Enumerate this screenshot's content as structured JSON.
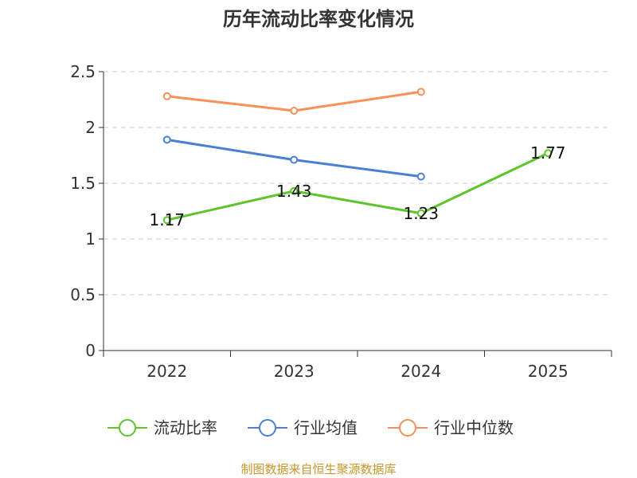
{
  "chart_data": {
    "type": "line",
    "title": "历年流动比率变化情况",
    "categories": [
      "2022",
      "2023",
      "2024",
      "2025"
    ],
    "ylim": [
      0,
      2.5
    ],
    "yticks": [
      "0",
      "0.5",
      "1",
      "1.5",
      "2",
      "2.5"
    ],
    "ytick_values": [
      0,
      0.5,
      1,
      1.5,
      2,
      2.5
    ],
    "grid": true,
    "legend_position": "bottom",
    "series": [
      {
        "name": "流动比率",
        "color": "#5cc52b",
        "values": [
          1.17,
          1.43,
          1.23,
          1.77
        ],
        "labels": [
          "1.17",
          "1.43",
          "1.23",
          "1.77"
        ]
      },
      {
        "name": "行业均值",
        "color": "#4a7fd8",
        "values": [
          1.89,
          1.71,
          1.56,
          null
        ]
      },
      {
        "name": "行业中位数",
        "color": "#f79158",
        "values": [
          2.28,
          2.15,
          2.32,
          null
        ]
      }
    ]
  },
  "footer": {
    "source": "制图数据来自恒生聚源数据库"
  }
}
